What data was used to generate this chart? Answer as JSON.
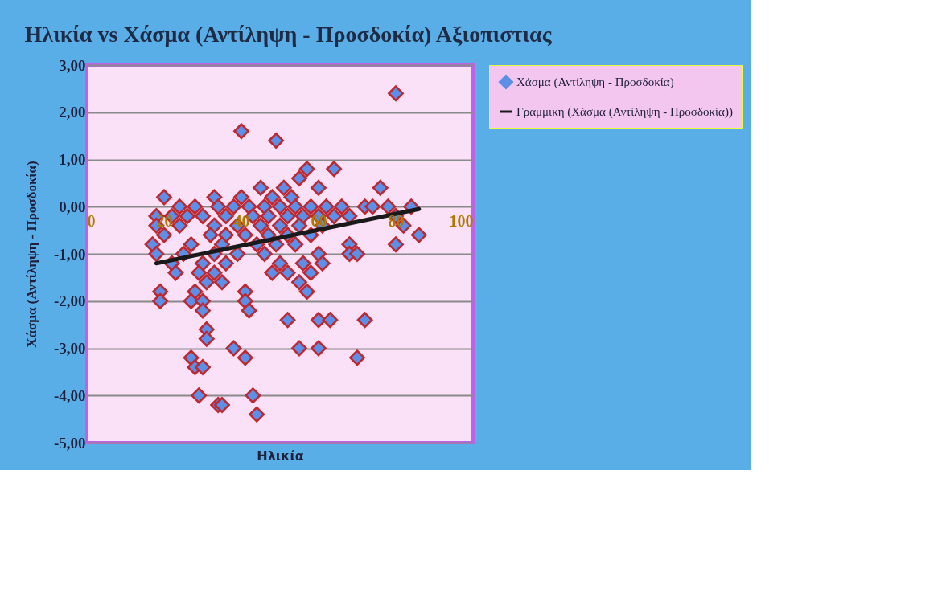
{
  "chart_data": {
    "type": "scatter",
    "title": "Ηλικία vs Χάσμα (Αντίληψη - Προσδοκία) Αξιοπιστιας",
    "xlabel": "Ηλικία",
    "ylabel": "Χάσμα (Αντίληψη - Προσδοκία)",
    "xlim": [
      0,
      100
    ],
    "xticks": [
      0,
      20,
      40,
      60,
      80,
      100
    ],
    "ylim": [
      -5,
      3
    ],
    "yticks": [
      {
        "value": 3,
        "label": "3,00"
      },
      {
        "value": 2,
        "label": "2,00"
      },
      {
        "value": 1,
        "label": "1,00"
      },
      {
        "value": 0,
        "label": "0,00"
      },
      {
        "value": -1,
        "label": "-1,00"
      },
      {
        "value": -2,
        "label": "-2,00"
      },
      {
        "value": -3,
        "label": "-3,00"
      },
      {
        "value": -4,
        "label": "-4,00"
      },
      {
        "value": -5,
        "label": "-5,00"
      }
    ],
    "grid": "y",
    "legend": "right",
    "marker": "diamond",
    "series": [
      {
        "name": "Χάσμα (Αντίληψη - Προσδοκία)",
        "color": "#5b8fe8",
        "x": [
          80,
          40,
          49,
          64,
          57,
          55,
          60,
          51,
          45,
          76,
          20,
          33,
          40,
          48,
          53,
          24,
          28,
          34,
          38,
          42,
          46,
          50,
          54,
          58,
          62,
          66,
          72,
          74,
          78,
          84,
          18,
          22,
          26,
          30,
          36,
          43,
          47,
          52,
          56,
          60,
          64,
          68,
          80,
          18,
          24,
          33,
          39,
          45,
          50,
          55,
          61,
          82,
          20,
          32,
          36,
          41,
          47,
          52,
          58,
          86,
          17,
          27,
          35,
          44,
          49,
          54,
          68,
          80,
          18,
          25,
          33,
          39,
          46,
          60,
          68,
          70,
          22,
          30,
          36,
          50,
          56,
          61,
          23,
          29,
          33,
          48,
          52,
          58,
          55,
          31,
          35,
          19,
          28,
          41,
          57,
          19,
          27,
          30,
          41,
          30,
          42,
          52,
          60,
          63,
          72,
          31,
          31,
          38,
          55,
          60,
          27,
          41,
          70,
          28,
          30,
          29,
          43,
          34,
          35,
          44
        ],
        "values": [
          2.4,
          1.6,
          1.4,
          0.8,
          0.8,
          0.6,
          0.4,
          0.4,
          0.4,
          0.4,
          0.2,
          0.2,
          0.2,
          0.2,
          0.2,
          0,
          0,
          0,
          0,
          0,
          0,
          0,
          0,
          0,
          0,
          0,
          0,
          0,
          0,
          0,
          -0.2,
          -0.2,
          -0.2,
          -0.2,
          -0.2,
          -0.2,
          -0.2,
          -0.2,
          -0.2,
          -0.2,
          -0.2,
          -0.2,
          -0.2,
          -0.4,
          -0.4,
          -0.4,
          -0.4,
          -0.4,
          -0.4,
          -0.4,
          -0.4,
          -0.4,
          -0.6,
          -0.6,
          -0.6,
          -0.6,
          -0.6,
          -0.6,
          -0.6,
          -0.6,
          -0.8,
          -0.8,
          -0.8,
          -0.8,
          -0.8,
          -0.8,
          -0.8,
          -0.8,
          -1.0,
          -1.0,
          -1.0,
          -1.0,
          -1.0,
          -1.0,
          -1.0,
          -1.0,
          -1.2,
          -1.2,
          -1.2,
          -1.2,
          -1.2,
          -1.2,
          -1.4,
          -1.4,
          -1.4,
          -1.4,
          -1.4,
          -1.4,
          -1.6,
          -1.6,
          -1.6,
          -1.8,
          -1.8,
          -1.8,
          -1.8,
          -2.0,
          -2.0,
          -2.0,
          -2.0,
          -2.2,
          -2.2,
          -2.4,
          -2.4,
          -2.4,
          -2.4,
          -2.6,
          -2.8,
          -3.0,
          -3.0,
          -3.0,
          -3.2,
          -3.2,
          -3.2,
          -3.4,
          -3.4,
          -4.0,
          -4.0,
          -4.2,
          -4.2,
          -4.4
        ]
      },
      {
        "name": "Γραμμική (Χάσμα (Αντίληψη - Προσδοκία))",
        "type": "line",
        "color": "#1a1a1a",
        "line_style": "solid",
        "marker": "none",
        "x": [
          18,
          86
        ],
        "values": [
          -1.2,
          -0.05
        ]
      }
    ]
  }
}
